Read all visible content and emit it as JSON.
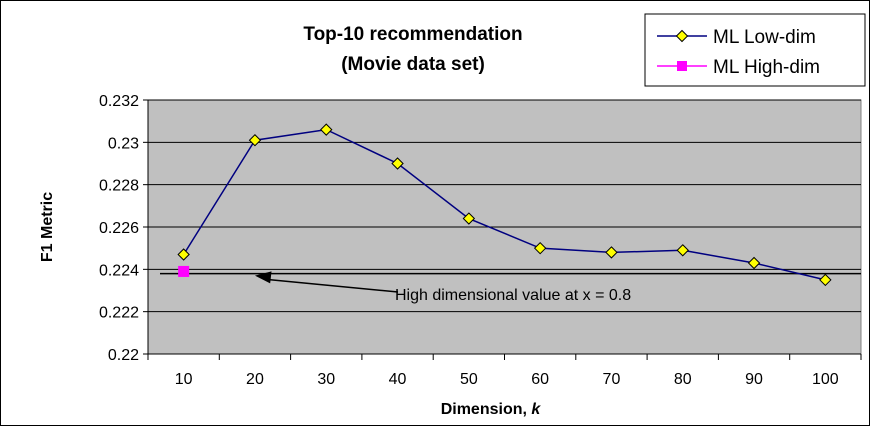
{
  "chart_data": {
    "type": "line",
    "title": [
      "Top-10 recommendation",
      "(Movie data set)"
    ],
    "xlabel_prefix": "Dimension, ",
    "xlabel_var": "k",
    "ylabel": "F1 Metric",
    "categories": [
      "10",
      "20",
      "30",
      "40",
      "50",
      "60",
      "70",
      "80",
      "90",
      "100"
    ],
    "x_positions": [
      1,
      2,
      3,
      4,
      5,
      6,
      7,
      8,
      9,
      10
    ],
    "ylim": [
      0.22,
      0.232
    ],
    "yticks": [
      "0.22",
      "0.222",
      "0.224",
      "0.226",
      "0.228",
      "0.23",
      "0.232"
    ],
    "ytick_values": [
      0.22,
      0.222,
      0.224,
      0.226,
      0.228,
      0.23,
      0.232
    ],
    "grid": true,
    "legend_position": "top-right",
    "series": [
      {
        "name": "ML Low-dim",
        "color": "#000080",
        "marker_color": "#ffff00",
        "marker": "diamond",
        "x": [
          1,
          2,
          3,
          4,
          5,
          6,
          7,
          8,
          9,
          10
        ],
        "values": [
          0.2247,
          0.2301,
          0.2306,
          0.229,
          0.2264,
          0.225,
          0.2248,
          0.2249,
          0.2243,
          0.2235
        ]
      },
      {
        "name": "ML High-dim",
        "color": "#ff00ff",
        "marker_color": "#ff00ff",
        "marker": "square",
        "x": [
          1
        ],
        "values": [
          0.2239
        ]
      }
    ],
    "reference_line": {
      "value": 0.2238,
      "color": "#000000"
    },
    "annotation": {
      "text": "High dimensional value at x = 0.8",
      "arrow_to_x": 2.0,
      "arrow_to_y": 0.2238
    },
    "plot_background": "#c0c0c0"
  }
}
